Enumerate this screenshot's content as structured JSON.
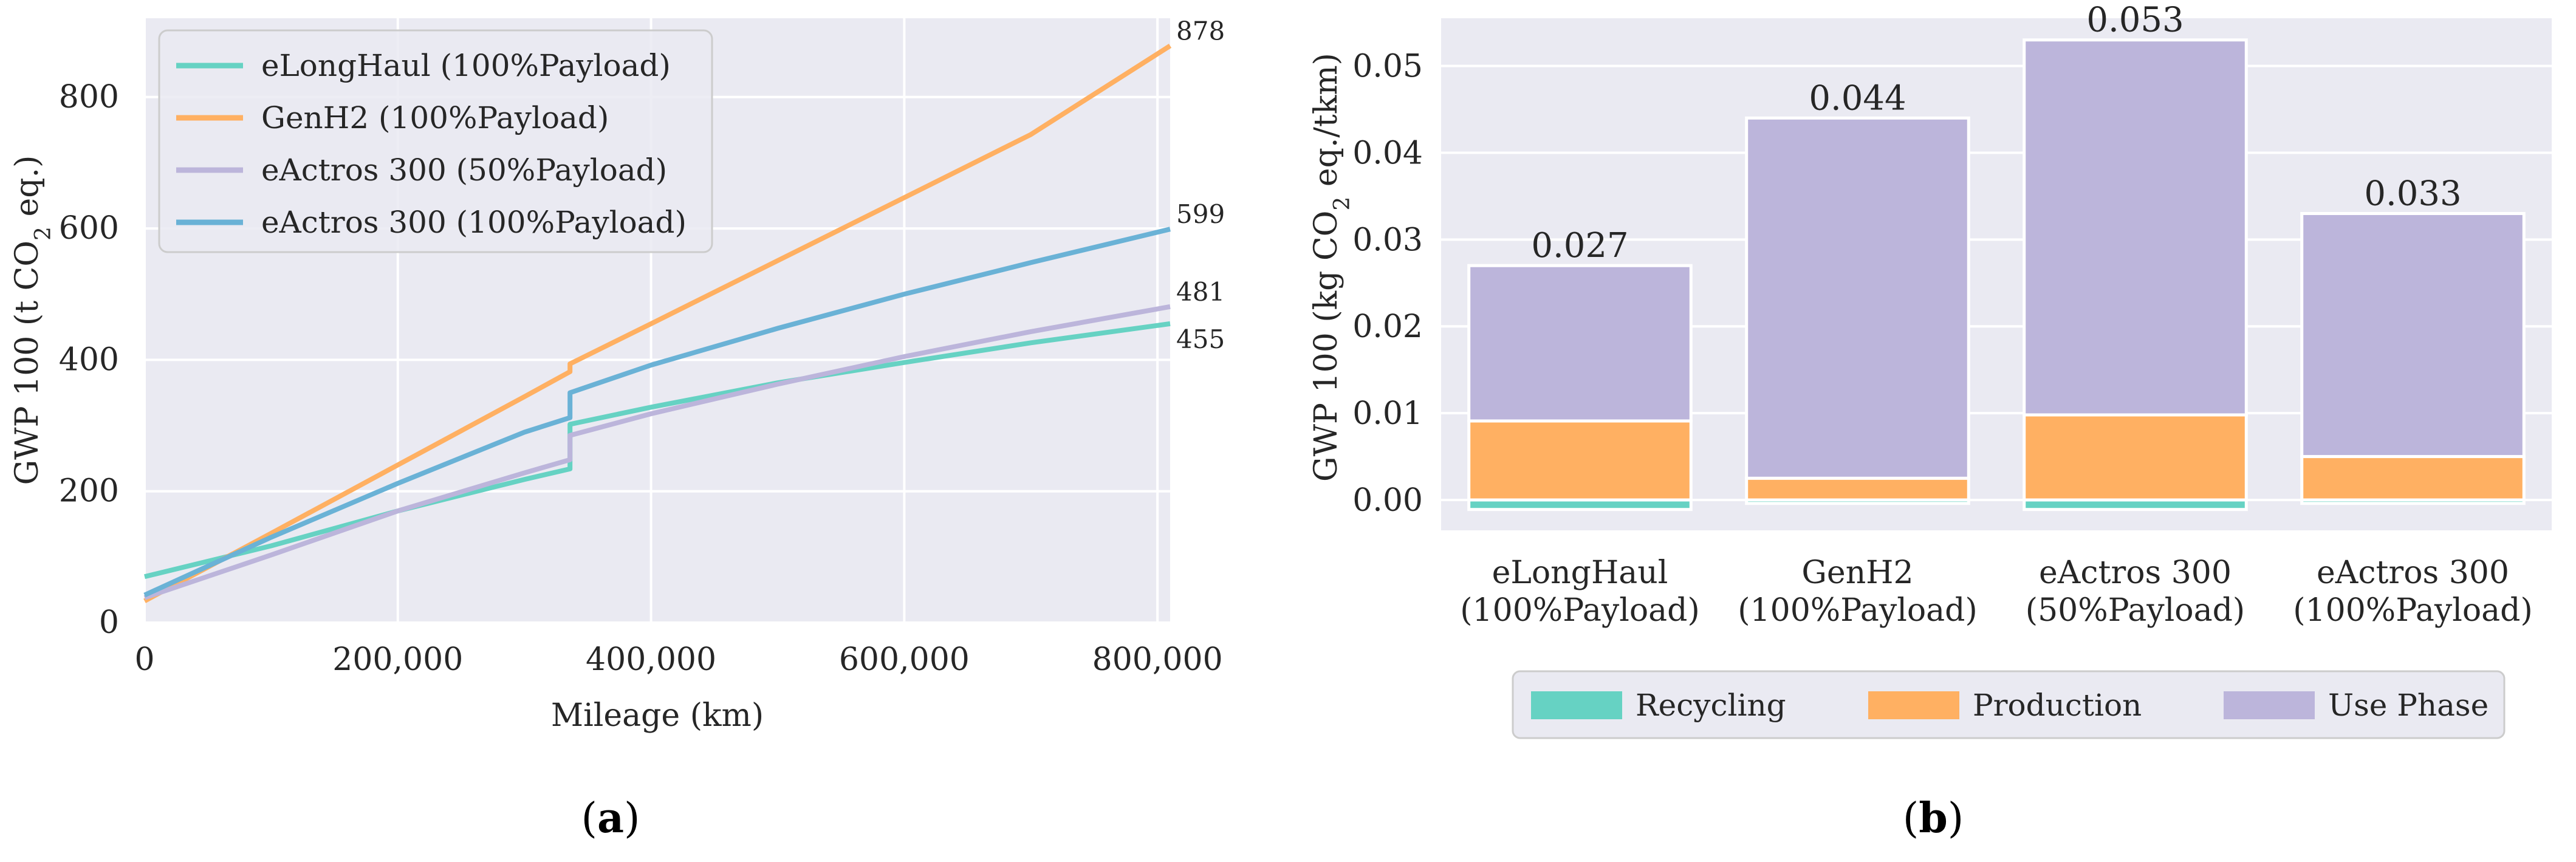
{
  "chart_data": [
    {
      "type": "line",
      "panel": "a",
      "xlabel": "Mileage (km)",
      "ylabel_main": "GWP 100 (t CO",
      "ylabel_sub": "2",
      "ylabel_end": " eq.)",
      "xlim": [
        0,
        810000
      ],
      "ylim": [
        0,
        920
      ],
      "xticks": [
        0,
        200000,
        400000,
        600000,
        800000
      ],
      "xtick_labels": [
        "0",
        "200,000",
        "400,000",
        "600,000",
        "800,000"
      ],
      "yticks": [
        0,
        200,
        400,
        600,
        800
      ],
      "ytick_labels": [
        "0",
        "200",
        "400",
        "600",
        "800"
      ],
      "grid": true,
      "legend_position": "top-left",
      "series": [
        {
          "name": "eLongHaul (100%Payload)",
          "color": "#66d2c3",
          "end_label": "455",
          "points": [
            [
              0,
              70
            ],
            [
              100000,
              117
            ],
            [
              200000,
              170
            ],
            [
              300000,
              218
            ],
            [
              336000,
              234
            ],
            [
              336000,
              302
            ],
            [
              400000,
              328
            ],
            [
              500000,
              365
            ],
            [
              600000,
              396
            ],
            [
              700000,
              426
            ],
            [
              810000,
              455
            ]
          ]
        },
        {
          "name": "GenH2 (100%Payload)",
          "color": "#ffb062",
          "end_label": "878",
          "points": [
            [
              0,
              33
            ],
            [
              100000,
              136
            ],
            [
              200000,
              240
            ],
            [
              300000,
              344
            ],
            [
              336000,
              382
            ],
            [
              336000,
              394
            ],
            [
              400000,
              455
            ],
            [
              500000,
              551
            ],
            [
              600000,
              647
            ],
            [
              700000,
              743
            ],
            [
              810000,
              878
            ]
          ]
        },
        {
          "name": "eActros 300 (50%Payload)",
          "color": "#bcb5db",
          "end_label": "481",
          "points": [
            [
              0,
              38
            ],
            [
              100000,
              103
            ],
            [
              200000,
              170
            ],
            [
              300000,
              228
            ],
            [
              336000,
              248
            ],
            [
              336000,
              285
            ],
            [
              400000,
              318
            ],
            [
              500000,
              363
            ],
            [
              600000,
              405
            ],
            [
              700000,
              443
            ],
            [
              810000,
              481
            ]
          ]
        },
        {
          "name": "eActros 300 (100%Payload)",
          "color": "#6ab2d6",
          "end_label": "599",
          "points": [
            [
              0,
              42
            ],
            [
              100000,
              130
            ],
            [
              200000,
              212
            ],
            [
              300000,
              290
            ],
            [
              336000,
              312
            ],
            [
              336000,
              350
            ],
            [
              400000,
              392
            ],
            [
              500000,
              448
            ],
            [
              600000,
              500
            ],
            [
              700000,
              548
            ],
            [
              810000,
              599
            ]
          ]
        }
      ]
    },
    {
      "type": "bar",
      "stacked": true,
      "panel": "b",
      "ylabel_main": "GWP 100 (kg CO",
      "ylabel_sub": "2",
      "ylabel_end": " eq./tkm)",
      "ylim": [
        -0.0035,
        0.0555
      ],
      "yticks": [
        0,
        0.01,
        0.02,
        0.03,
        0.04,
        0.05
      ],
      "ytick_labels": [
        "0.00",
        "0.01",
        "0.02",
        "0.03",
        "0.04",
        "0.05"
      ],
      "grid": true,
      "legend_position": "bottom-center",
      "categories": [
        [
          "eLongHaul",
          "(100%Payload)"
        ],
        [
          "GenH2",
          "(100%Payload)"
        ],
        [
          "eActros 300",
          "(50%Payload)"
        ],
        [
          "eActros 300",
          "(100%Payload)"
        ]
      ],
      "totals": [
        0.027,
        0.044,
        0.053,
        0.033
      ],
      "total_labels": [
        "0.027",
        "0.044",
        "0.053",
        "0.033"
      ],
      "series": [
        {
          "name": "Recycling",
          "color": "#66d2c3",
          "values": [
            -0.0011,
            -0.0004,
            -0.0011,
            -0.0004
          ]
        },
        {
          "name": "Production",
          "color": "#ffb062",
          "values": [
            0.0091,
            0.0025,
            0.0098,
            0.005
          ]
        },
        {
          "name": "Use Phase",
          "color": "#bcb5db",
          "values": [
            0.0179,
            0.0415,
            0.0432,
            0.028
          ]
        }
      ]
    }
  ],
  "panel_labels": {
    "a": "a",
    "b": "b"
  }
}
